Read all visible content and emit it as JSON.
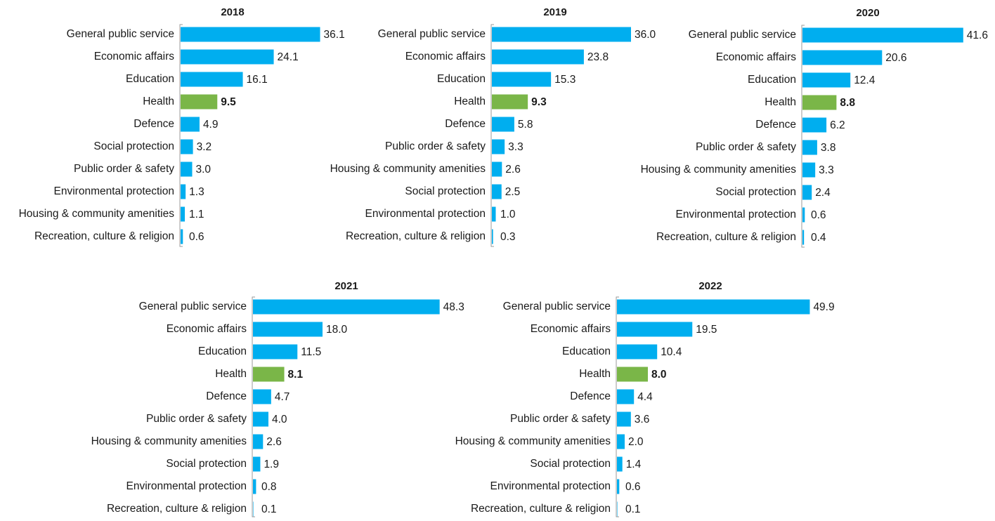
{
  "chart_data": [
    {
      "type": "bar",
      "orientation": "horizontal",
      "title": "2018",
      "categories": [
        "General public service",
        "Economic affairs",
        "Education",
        "Health",
        "Defence",
        "Social protection",
        "Public order & safety",
        "Environmental protection",
        "Housing & community amenities",
        "Recreation, culture & religion"
      ],
      "values": [
        36.1,
        24.1,
        16.1,
        9.5,
        4.9,
        3.2,
        3.0,
        1.3,
        1.1,
        0.6
      ],
      "value_labels": [
        "36.1",
        "24.1",
        "16.1",
        "9.5",
        "4.9",
        "3.2",
        "3.0",
        "1.3",
        "1.1",
        "0.6"
      ],
      "colors": [
        "#00aeef",
        "#00aeef",
        "#00aeef",
        "#7ab648",
        "#00aeef",
        "#00aeef",
        "#00aeef",
        "#00aeef",
        "#00aeef",
        "#00aeef"
      ]
    },
    {
      "type": "bar",
      "orientation": "horizontal",
      "title": "2019",
      "categories": [
        "General public service",
        "Economic affairs",
        "Education",
        "Health",
        "Defence",
        "Public order & safety",
        "Housing & community amenities",
        "Social protection",
        "Environmental protection",
        "Recreation, culture & religion"
      ],
      "values": [
        36.0,
        23.8,
        15.3,
        9.3,
        5.8,
        3.3,
        2.6,
        2.5,
        1.0,
        0.3
      ],
      "value_labels": [
        "36.0",
        "23.8",
        "15.3",
        "9.3",
        "5.8",
        "3.3",
        "2.6",
        "2.5",
        "1.0",
        "0.3"
      ],
      "colors": [
        "#00aeef",
        "#00aeef",
        "#00aeef",
        "#7ab648",
        "#00aeef",
        "#00aeef",
        "#00aeef",
        "#00aeef",
        "#00aeef",
        "#00aeef"
      ]
    },
    {
      "type": "bar",
      "orientation": "horizontal",
      "title": "2020",
      "categories": [
        "General public service",
        "Economic affairs",
        "Education",
        "Health",
        "Defence",
        "Public order & safety",
        "Housing & community amenities",
        "Social protection",
        "Environmental protection",
        "Recreation, culture & religion"
      ],
      "values": [
        41.6,
        20.6,
        12.4,
        8.8,
        6.2,
        3.8,
        3.3,
        2.4,
        0.6,
        0.4
      ],
      "value_labels": [
        "41.6",
        "20.6",
        "12.4",
        "8.8",
        "6.2",
        "3.8",
        "3.3",
        "2.4",
        "0.6",
        "0.4"
      ],
      "colors": [
        "#00aeef",
        "#00aeef",
        "#00aeef",
        "#7ab648",
        "#00aeef",
        "#00aeef",
        "#00aeef",
        "#00aeef",
        "#00aeef",
        "#00aeef"
      ]
    },
    {
      "type": "bar",
      "orientation": "horizontal",
      "title": "2021",
      "categories": [
        "General public service",
        "Economic affairs",
        "Education",
        "Health",
        "Defence",
        "Public order & safety",
        "Housing & community amenities",
        "Social protection",
        "Environmental protection",
        "Recreation, culture & religion"
      ],
      "values": [
        48.3,
        18.0,
        11.5,
        8.1,
        4.7,
        4.0,
        2.6,
        1.9,
        0.8,
        0.1
      ],
      "value_labels": [
        "48.3",
        "18.0",
        "11.5",
        "8.1",
        "4.7",
        "4.0",
        "2.6",
        "1.9",
        "0.8",
        "0.1"
      ],
      "colors": [
        "#00aeef",
        "#00aeef",
        "#00aeef",
        "#7ab648",
        "#00aeef",
        "#00aeef",
        "#00aeef",
        "#00aeef",
        "#00aeef",
        "#00aeef"
      ]
    },
    {
      "type": "bar",
      "orientation": "horizontal",
      "title": "2022",
      "categories": [
        "General public service",
        "Economic affairs",
        "Education",
        "Health",
        "Defence",
        "Public order & safety",
        "Housing & community amenities",
        "Social protection",
        "Environmental protection",
        "Recreation, culture & religion"
      ],
      "values": [
        49.9,
        19.5,
        10.4,
        8.0,
        4.4,
        3.6,
        2.0,
        1.4,
        0.6,
        0.1
      ],
      "value_labels": [
        "49.9",
        "19.5",
        "10.4",
        "8.0",
        "4.4",
        "3.6",
        "2.0",
        "1.4",
        "0.6",
        "0.1"
      ],
      "colors": [
        "#00aeef",
        "#00aeef",
        "#00aeef",
        "#7ab648",
        "#00aeef",
        "#00aeef",
        "#00aeef",
        "#00aeef",
        "#00aeef",
        "#00aeef"
      ]
    }
  ]
}
